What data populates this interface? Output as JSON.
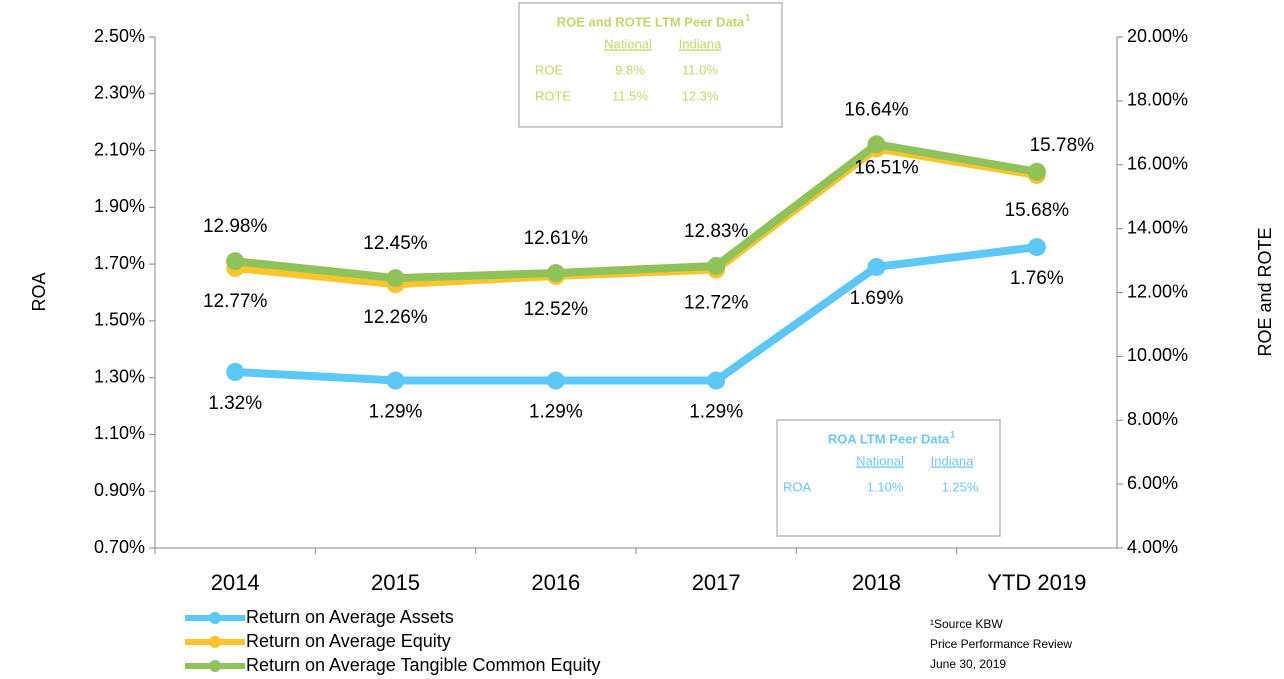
{
  "chart_data": {
    "type": "line",
    "categories": [
      "2014",
      "2015",
      "2016",
      "2017",
      "2018",
      "YTD 2019"
    ],
    "y_label": "ROA",
    "y2_label": "ROE and ROTE",
    "ylim": [
      0.7,
      2.5
    ],
    "yticks": [
      {
        "value": 0.7,
        "label": "0.70%"
      },
      {
        "value": 0.9,
        "label": "0.90%"
      },
      {
        "value": 1.1,
        "label": "1.10%"
      },
      {
        "value": 1.3,
        "label": "1.30%"
      },
      {
        "value": 1.5,
        "label": "1.50%"
      },
      {
        "value": 1.7,
        "label": "1.70%"
      },
      {
        "value": 1.9,
        "label": "1.90%"
      },
      {
        "value": 2.1,
        "label": "2.10%"
      },
      {
        "value": 2.3,
        "label": "2.30%"
      },
      {
        "value": 2.5,
        "label": "2.50%"
      }
    ],
    "y2lim": [
      4,
      20
    ],
    "y2ticks": [
      {
        "value": 4,
        "label": "4.00%"
      },
      {
        "value": 6,
        "label": "6.00%"
      },
      {
        "value": 8,
        "label": "8.00%"
      },
      {
        "value": 10,
        "label": "10.00%"
      },
      {
        "value": 12,
        "label": "12.00%"
      },
      {
        "value": 14,
        "label": "14.00%"
      },
      {
        "value": 16,
        "label": "16.00%"
      },
      {
        "value": 18,
        "label": "18.00%"
      },
      {
        "value": 20,
        "label": "20.00%"
      }
    ],
    "series": [
      {
        "name": "Return on Average Assets",
        "color": "#5bc8f7",
        "axis": "y",
        "values": [
          1.32,
          1.29,
          1.29,
          1.29,
          1.69,
          1.76
        ],
        "value_labels": [
          "1.32%",
          "1.29%",
          "1.29%",
          "1.29%",
          "1.69%",
          "1.76%"
        ]
      },
      {
        "name": "Return on Average Equity",
        "color": "#fbc52b",
        "axis": "y2",
        "values": [
          12.77,
          12.26,
          12.52,
          12.72,
          16.51,
          15.68
        ],
        "value_labels": [
          "12.77%",
          "12.26%",
          "12.52%",
          "12.72%",
          "16.51%",
          "15.68%"
        ]
      },
      {
        "name": "Return on Average Tangible Common Equity",
        "color": "#8fc35a",
        "axis": "y2",
        "values": [
          12.98,
          12.45,
          12.61,
          12.83,
          16.64,
          15.78
        ],
        "value_labels": [
          "12.98%",
          "12.45%",
          "12.61%",
          "12.83%",
          "16.64%",
          "15.78%"
        ]
      }
    ],
    "annotations": [
      {
        "title": "ROE and ROTE LTM Peer Data",
        "sup": "1",
        "headers": [
          "National",
          "Indiana"
        ],
        "rows": [
          [
            "ROE",
            "9.8%",
            "11.0%"
          ],
          [
            "ROTE",
            "11.5%",
            "12.3%"
          ]
        ]
      },
      {
        "title": "ROA LTM Peer Data",
        "sup": "1",
        "headers": [
          "National",
          "Indiana"
        ],
        "rows": [
          [
            "ROA",
            "1.10%",
            "1.25%"
          ]
        ]
      }
    ],
    "source": [
      "¹Source KBW",
      "Price Performance Review",
      "June 30, 2019"
    ]
  }
}
